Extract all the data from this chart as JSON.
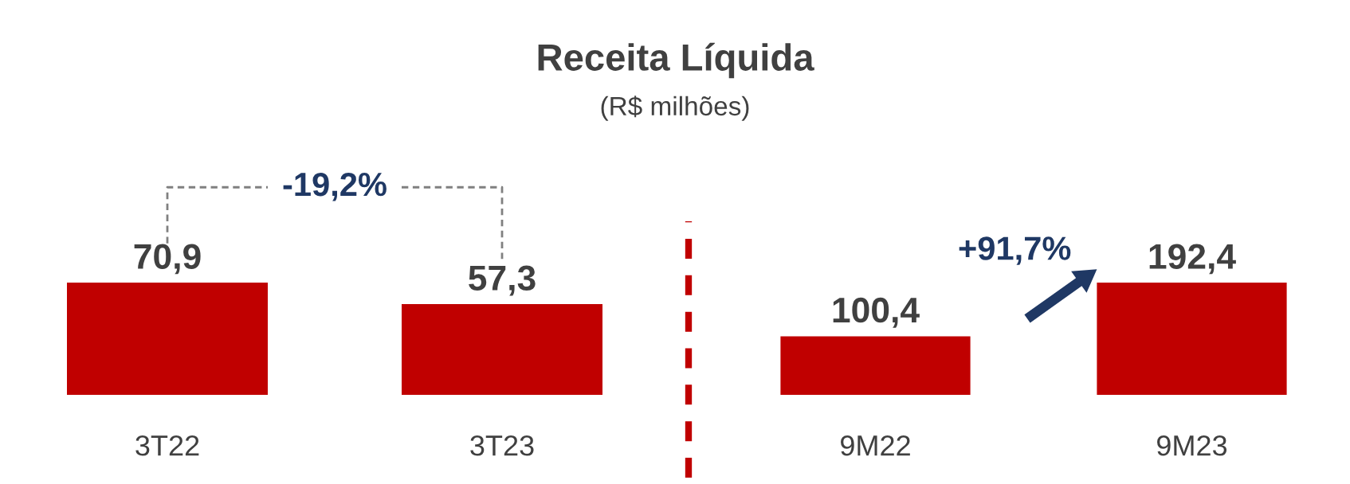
{
  "chart_data": [
    {
      "type": "bar",
      "title": "Receita Líquida",
      "subtitle": "(R$ milhões)",
      "categories": [
        "3T22",
        "3T23"
      ],
      "values": [
        70.9,
        57.3
      ],
      "color": "#c00000",
      "value_labels": [
        "70,9",
        "57,3"
      ],
      "annotations": [
        "-19,2%"
      ]
    },
    {
      "type": "bar",
      "categories": [
        "9M22",
        "9M23"
      ],
      "values": [
        100.4,
        192.4
      ],
      "color": "#c00000",
      "value_labels": [
        "100,4",
        "192,4"
      ],
      "annotations": [
        "+91,7%"
      ]
    }
  ]
}
